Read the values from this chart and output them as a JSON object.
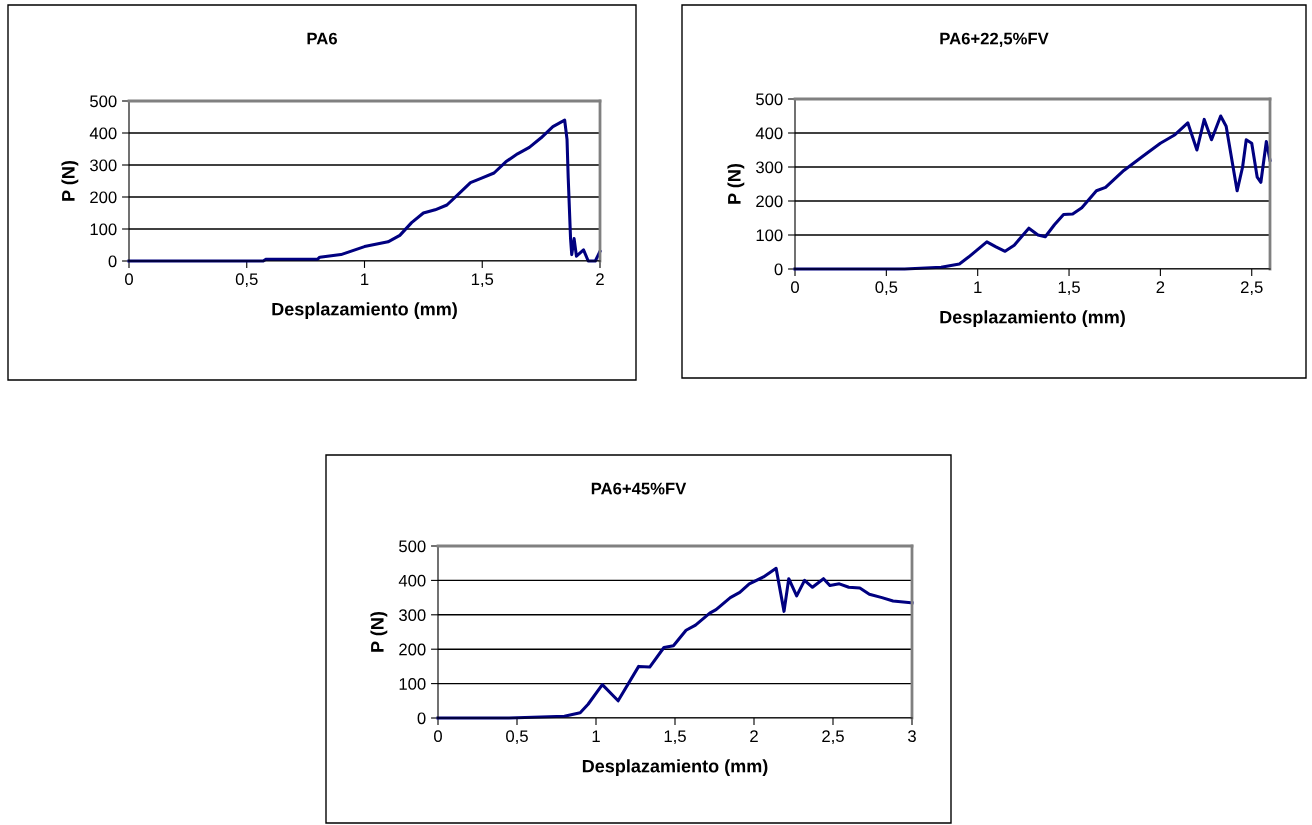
{
  "chart_data": [
    {
      "type": "line",
      "title": "PA6",
      "xlabel": "Desplazamiento (mm)",
      "ylabel": "P (N)",
      "xlim": [
        0,
        2
      ],
      "ylim": [
        0,
        500
      ],
      "xticks": [
        0,
        {
          "value": 0.5,
          "label": "0,5"
        },
        1,
        {
          "value": 1.5,
          "label": "1,5"
        },
        2
      ],
      "yticks": [
        0,
        100,
        200,
        300,
        400,
        500
      ],
      "grid": "y",
      "series": [
        {
          "color": "#000080",
          "x": [
            0,
            0.57,
            0.58,
            0.8,
            0.81,
            0.9,
            1.0,
            1.1,
            1.15,
            1.2,
            1.25,
            1.3,
            1.35,
            1.4,
            1.45,
            1.5,
            1.55,
            1.6,
            1.65,
            1.7,
            1.75,
            1.8,
            1.85,
            1.86,
            1.865,
            1.875,
            1.88,
            1.89,
            1.9,
            1.93,
            1.95,
            1.98,
            2.0
          ],
          "values": [
            0,
            0,
            5,
            5,
            12,
            20,
            45,
            60,
            80,
            120,
            150,
            160,
            175,
            210,
            245,
            260,
            275,
            310,
            335,
            355,
            385,
            420,
            440,
            380,
            260,
            70,
            20,
            70,
            15,
            35,
            0,
            0,
            30
          ]
        }
      ]
    },
    {
      "type": "line",
      "title": "PA6+22,5%FV",
      "xlabel": "Desplazamiento (mm)",
      "ylabel": "P (N)",
      "xlim": [
        0,
        2.6
      ],
      "ylim": [
        0,
        500
      ],
      "xticks": [
        0,
        {
          "value": 0.5,
          "label": "0,5"
        },
        1,
        {
          "value": 1.5,
          "label": "1,5"
        },
        2,
        {
          "value": 2.5,
          "label": "2,5"
        }
      ],
      "yticks": [
        0,
        100,
        200,
        300,
        400,
        500
      ],
      "grid": "y",
      "series": [
        {
          "color": "#000080",
          "x": [
            0,
            0.6,
            0.8,
            0.9,
            0.95,
            1.05,
            1.1,
            1.15,
            1.2,
            1.28,
            1.33,
            1.37,
            1.42,
            1.47,
            1.52,
            1.57,
            1.65,
            1.7,
            1.8,
            1.9,
            2.0,
            2.08,
            2.15,
            2.2,
            2.24,
            2.28,
            2.33,
            2.36,
            2.42,
            2.45,
            2.47,
            2.5,
            2.53,
            2.55,
            2.58,
            2.6
          ],
          "values": [
            0,
            0,
            5,
            15,
            35,
            80,
            65,
            52,
            70,
            120,
            100,
            95,
            130,
            160,
            162,
            180,
            230,
            240,
            290,
            330,
            370,
            395,
            430,
            350,
            440,
            380,
            450,
            420,
            230,
            300,
            380,
            370,
            270,
            255,
            375,
            320
          ]
        }
      ]
    },
    {
      "type": "line",
      "title": "PA6+45%FV",
      "xlabel": "Desplazamiento (mm)",
      "ylabel": "P (N)",
      "xlim": [
        0,
        3
      ],
      "ylim": [
        0,
        500
      ],
      "xticks": [
        0,
        {
          "value": 0.5,
          "label": "0,5"
        },
        1,
        {
          "value": 1.5,
          "label": "1,5"
        },
        2,
        {
          "value": 2.5,
          "label": "2,5"
        },
        3
      ],
      "yticks": [
        0,
        100,
        200,
        300,
        400,
        500
      ],
      "grid": "y",
      "series": [
        {
          "color": "#000080",
          "x": [
            0,
            0.45,
            0.8,
            0.9,
            0.95,
            1.04,
            1.14,
            1.27,
            1.34,
            1.43,
            1.49,
            1.57,
            1.63,
            1.72,
            1.76,
            1.85,
            1.91,
            1.97,
            2.06,
            2.14,
            2.19,
            2.22,
            2.27,
            2.32,
            2.37,
            2.44,
            2.48,
            2.54,
            2.6,
            2.67,
            2.73,
            2.81,
            2.88,
            3.0
          ],
          "values": [
            0,
            0,
            5,
            15,
            40,
            97,
            50,
            150,
            148,
            205,
            210,
            255,
            270,
            305,
            315,
            350,
            365,
            390,
            410,
            435,
            310,
            405,
            355,
            400,
            380,
            405,
            385,
            390,
            380,
            378,
            360,
            350,
            340,
            335
          ]
        }
      ]
    }
  ]
}
